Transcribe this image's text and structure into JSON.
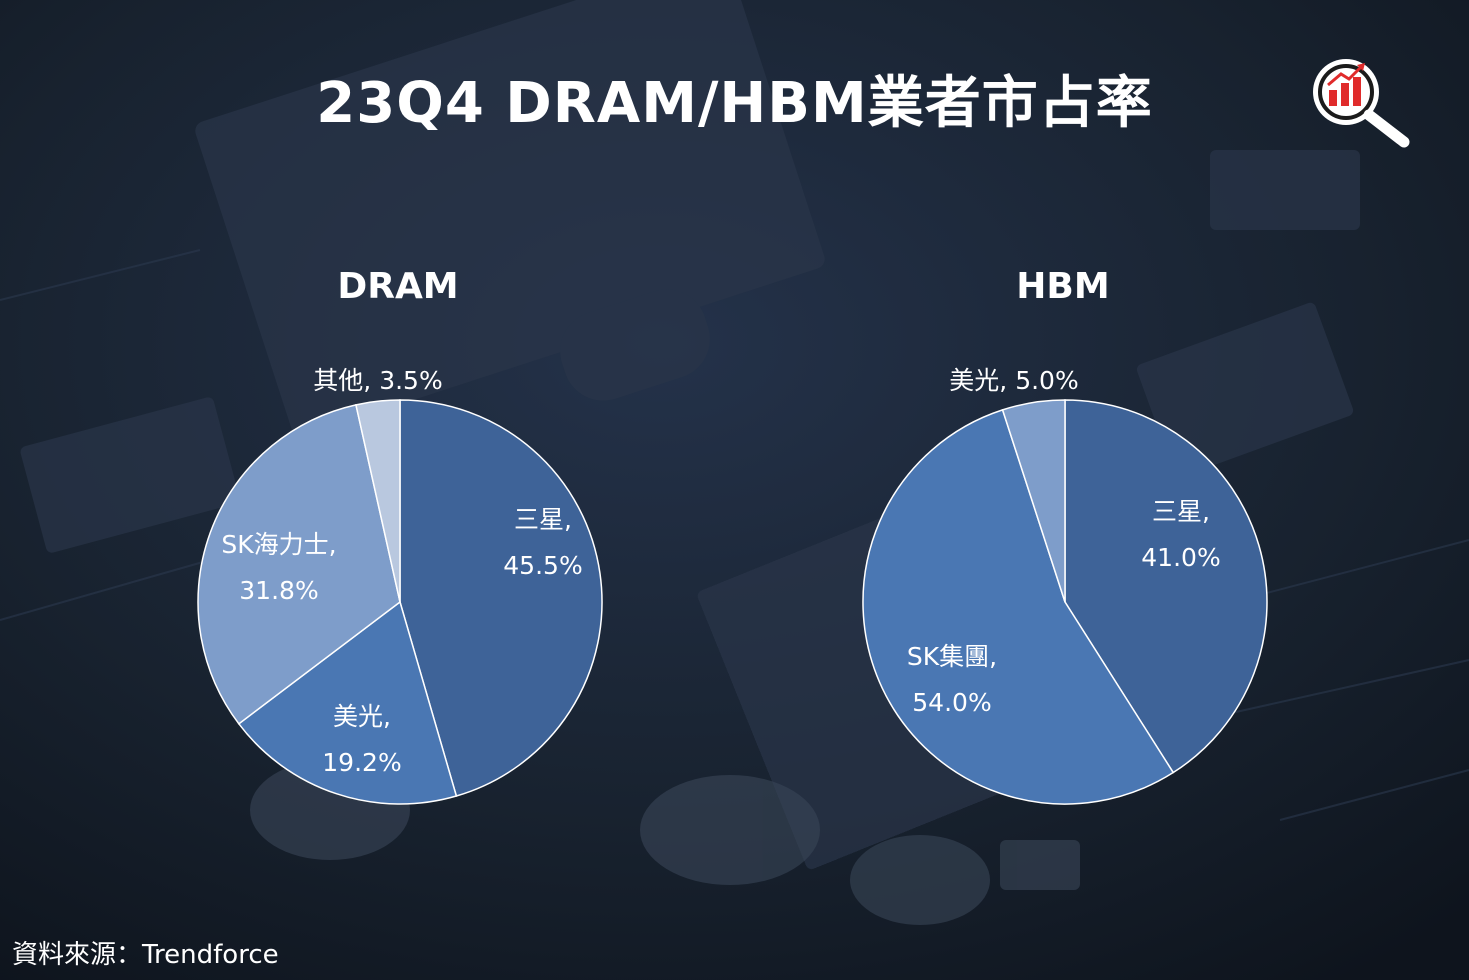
{
  "title": "23Q4 DRAM/HBM業者市占率",
  "source": "資料來源：Trendforce",
  "chart_data": [
    {
      "type": "pie",
      "title": "DRAM",
      "slices": [
        {
          "label": "三星",
          "value": 45.5,
          "display": "45.5%",
          "color": "#3e6398"
        },
        {
          "label": "美光",
          "value": 19.2,
          "display": "19.2%",
          "color": "#4a77b3"
        },
        {
          "label": "SK海力士",
          "value": 31.8,
          "display": "31.8%",
          "color": "#7e9dca"
        },
        {
          "label": "其他",
          "value": 3.5,
          "display": "3.5%",
          "color": "#b9c8df"
        }
      ]
    },
    {
      "type": "pie",
      "title": "HBM",
      "slices": [
        {
          "label": "三星",
          "value": 41.0,
          "display": "41.0%",
          "color": "#3e6398"
        },
        {
          "label": "SK集團",
          "value": 54.0,
          "display": "54.0%",
          "color": "#4a77b3"
        },
        {
          "label": "美光",
          "value": 5.0,
          "display": "5.0%",
          "color": "#7e9dca"
        }
      ]
    }
  ]
}
